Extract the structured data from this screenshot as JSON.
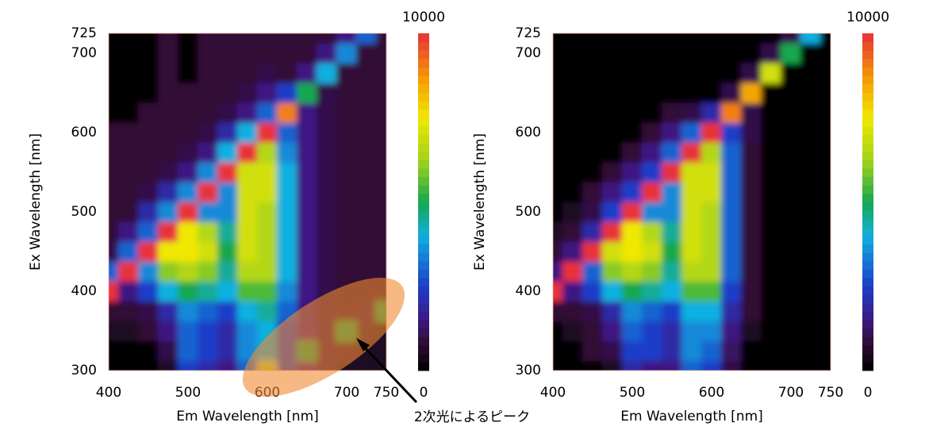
{
  "chart_data": [
    {
      "type": "heatmap",
      "xlabel": "Em Wavelength [nm]",
      "ylabel": "Ex Wavelength [nm]",
      "xlim": [
        400,
        750
      ],
      "ylim": [
        300,
        725
      ],
      "xticks": [
        400,
        500,
        600,
        700,
        750
      ],
      "yticks": [
        300,
        400,
        500,
        600,
        700,
        725
      ],
      "clim": [
        0,
        10000
      ],
      "cticks": [
        0,
        10000
      ],
      "annotation": "2次光によるピーク",
      "x": [
        400,
        425,
        450,
        475,
        500,
        525,
        550,
        575,
        600,
        625,
        650,
        675,
        700,
        725,
        750
      ],
      "y": [
        300,
        325,
        350,
        375,
        400,
        425,
        450,
        475,
        500,
        525,
        550,
        575,
        600,
        625,
        650,
        675,
        700,
        725
      ],
      "z": [
        [
          0,
          0,
          0,
          500,
          2500,
          2000,
          1500,
          3000,
          6500,
          2500,
          1500,
          1000,
          500,
          500,
          500
        ],
        [
          0,
          0,
          0,
          1000,
          3000,
          2500,
          2000,
          3500,
          4000,
          2500,
          5000,
          1000,
          800,
          500,
          500
        ],
        [
          500,
          500,
          800,
          1500,
          3000,
          2500,
          2000,
          3500,
          4000,
          2500,
          1500,
          1000,
          5000,
          800,
          500
        ],
        [
          800,
          800,
          1000,
          2000,
          3500,
          3000,
          2500,
          4000,
          4500,
          3000,
          1500,
          1000,
          800,
          1000,
          5000
        ],
        [
          10000,
          1500,
          2500,
          4000,
          5000,
          4500,
          4000,
          5500,
          5500,
          3500,
          1500,
          1000,
          800,
          800,
          800
        ],
        [
          3000,
          10000,
          3500,
          6000,
          6500,
          6000,
          4500,
          6500,
          6500,
          4000,
          1500,
          1000,
          800,
          800,
          800
        ],
        [
          1000,
          3000,
          10000,
          7500,
          7500,
          7000,
          5000,
          7000,
          6500,
          4000,
          1500,
          1000,
          800,
          800,
          800
        ],
        [
          800,
          1500,
          3000,
          10000,
          7500,
          6500,
          4500,
          7000,
          6500,
          4000,
          1500,
          1000,
          800,
          800,
          800
        ],
        [
          800,
          800,
          2000,
          3500,
          10000,
          3500,
          3500,
          7000,
          6500,
          4000,
          1500,
          1000,
          800,
          800,
          800
        ],
        [
          800,
          800,
          1000,
          2000,
          3500,
          10000,
          3500,
          7000,
          7000,
          4000,
          1500,
          1000,
          800,
          800,
          800
        ],
        [
          800,
          800,
          800,
          1000,
          1500,
          3500,
          10000,
          7000,
          7000,
          4000,
          1500,
          1000,
          800,
          800,
          800
        ],
        [
          800,
          800,
          800,
          800,
          1000,
          1500,
          4000,
          10000,
          6500,
          3500,
          1500,
          1000,
          800,
          800,
          800
        ],
        [
          800,
          800,
          800,
          800,
          800,
          1000,
          2000,
          4000,
          10000,
          3000,
          1500,
          1000,
          800,
          800,
          800
        ],
        [
          0,
          0,
          800,
          800,
          800,
          800,
          1000,
          1500,
          3000,
          9000,
          1500,
          1000,
          800,
          800,
          800
        ],
        [
          0,
          0,
          0,
          800,
          800,
          800,
          800,
          1000,
          1500,
          2500,
          5000,
          1000,
          800,
          800,
          800
        ],
        [
          0,
          0,
          0,
          800,
          0,
          800,
          800,
          800,
          1000,
          800,
          1500,
          4000,
          800,
          800,
          800
        ],
        [
          0,
          0,
          0,
          800,
          0,
          800,
          800,
          800,
          800,
          800,
          800,
          1500,
          3500,
          800,
          800
        ],
        [
          0,
          0,
          0,
          800,
          0,
          800,
          800,
          800,
          800,
          800,
          800,
          800,
          1500,
          3000,
          800
        ]
      ]
    },
    {
      "type": "heatmap",
      "xlabel": "Em Wavelength [nm]",
      "ylabel": "Ex Wavelength [nm]",
      "xlim": [
        400,
        750
      ],
      "ylim": [
        300,
        725
      ],
      "xticks": [
        400,
        500,
        600,
        700,
        750
      ],
      "yticks": [
        300,
        400,
        500,
        600,
        700,
        725
      ],
      "clim": [
        0,
        10000
      ],
      "cticks": [
        0,
        10000
      ],
      "x": [
        400,
        425,
        450,
        475,
        500,
        525,
        550,
        575,
        600,
        625,
        650,
        675,
        700,
        725,
        750
      ],
      "y": [
        300,
        325,
        350,
        375,
        400,
        425,
        450,
        475,
        500,
        525,
        550,
        575,
        600,
        625,
        650,
        675,
        700,
        725
      ],
      "z": [
        [
          0,
          0,
          0,
          500,
          2000,
          1500,
          1500,
          3000,
          2500,
          1000,
          0,
          0,
          0,
          0,
          0
        ],
        [
          0,
          0,
          800,
          1000,
          2500,
          2500,
          2000,
          3500,
          3000,
          1200,
          0,
          0,
          0,
          0,
          0
        ],
        [
          0,
          500,
          800,
          1500,
          3000,
          2500,
          2000,
          3500,
          3500,
          1500,
          500,
          0,
          0,
          0,
          0
        ],
        [
          800,
          800,
          1000,
          2000,
          3500,
          3000,
          2500,
          4000,
          4000,
          2000,
          800,
          0,
          0,
          0,
          0
        ],
        [
          10000,
          1500,
          2500,
          4000,
          5000,
          4500,
          4000,
          5500,
          5500,
          2500,
          800,
          0,
          0,
          0,
          0
        ],
        [
          1500,
          10000,
          3000,
          6000,
          6500,
          6000,
          4500,
          6500,
          6500,
          3000,
          800,
          0,
          0,
          0,
          0
        ],
        [
          800,
          1500,
          10000,
          7000,
          7500,
          7000,
          5000,
          7000,
          6500,
          3000,
          800,
          0,
          0,
          0,
          0
        ],
        [
          500,
          800,
          2000,
          10000,
          7500,
          6500,
          4500,
          7000,
          6500,
          3000,
          800,
          0,
          0,
          0,
          0
        ],
        [
          0,
          500,
          1000,
          2500,
          10000,
          3500,
          3500,
          7000,
          6500,
          3000,
          800,
          0,
          0,
          0,
          0
        ],
        [
          0,
          0,
          800,
          1500,
          2500,
          10000,
          3500,
          7000,
          7000,
          3000,
          800,
          0,
          0,
          0,
          0
        ],
        [
          0,
          0,
          0,
          800,
          1500,
          2500,
          10000,
          7000,
          7000,
          3000,
          800,
          0,
          0,
          0,
          0
        ],
        [
          0,
          0,
          0,
          0,
          800,
          1500,
          3000,
          10000,
          6500,
          3000,
          800,
          0,
          0,
          0,
          0
        ],
        [
          0,
          0,
          0,
          0,
          0,
          800,
          1500,
          3000,
          10000,
          2500,
          1000,
          0,
          0,
          0,
          0
        ],
        [
          0,
          0,
          0,
          0,
          0,
          0,
          800,
          1000,
          2000,
          9000,
          1000,
          0,
          0,
          0,
          0
        ],
        [
          0,
          0,
          0,
          0,
          0,
          0,
          0,
          0,
          0,
          1000,
          8500,
          0,
          0,
          0,
          0
        ],
        [
          0,
          0,
          0,
          0,
          0,
          0,
          0,
          0,
          0,
          0,
          1000,
          7000,
          0,
          0,
          0
        ],
        [
          0,
          0,
          0,
          0,
          0,
          0,
          0,
          0,
          0,
          0,
          0,
          1000,
          5000,
          0,
          0
        ],
        [
          0,
          0,
          0,
          0,
          0,
          0,
          0,
          0,
          0,
          0,
          0,
          0,
          1000,
          4000,
          0
        ]
      ]
    }
  ]
}
